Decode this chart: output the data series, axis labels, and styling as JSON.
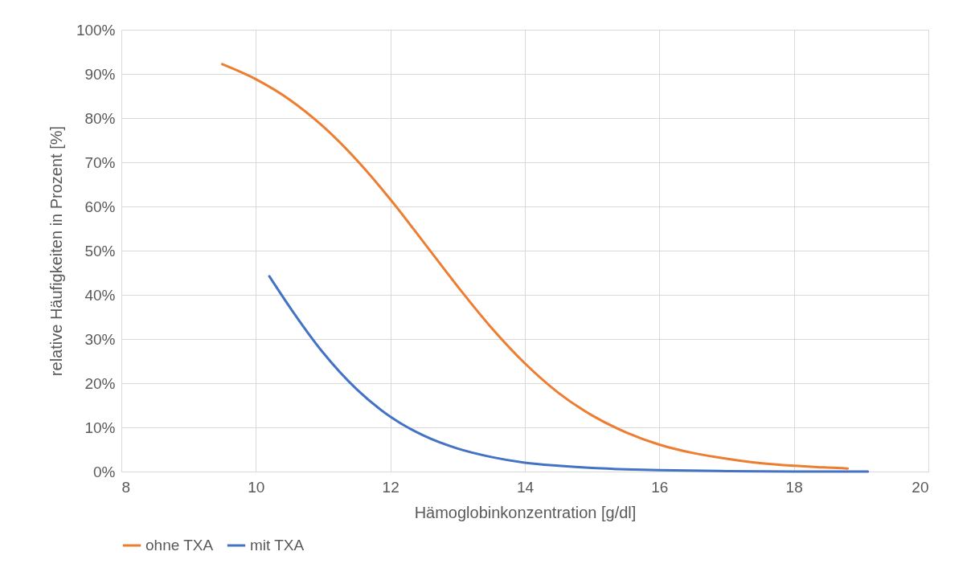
{
  "chart_data": {
    "type": "line",
    "xlabel": "Hämoglobinkonzentration [g/dl]",
    "ylabel": "relative Häufigkeiten in Prozent [%]",
    "xlim": [
      8,
      20
    ],
    "xticks": [
      8,
      10,
      12,
      14,
      16,
      18,
      20
    ],
    "ylim": [
      0,
      100
    ],
    "yticks": [
      {
        "value": 0,
        "label": "0%"
      },
      {
        "value": 10,
        "label": "10%"
      },
      {
        "value": 20,
        "label": "20%"
      },
      {
        "value": 30,
        "label": "30%"
      },
      {
        "value": 40,
        "label": "40%"
      },
      {
        "value": 50,
        "label": "50%"
      },
      {
        "value": 60,
        "label": "60%"
      },
      {
        "value": 70,
        "label": "70%"
      },
      {
        "value": 80,
        "label": "80%"
      },
      {
        "value": 90,
        "label": "90%"
      },
      {
        "value": 100,
        "label": "100%"
      }
    ],
    "grid": true,
    "legend": "bottom",
    "marker": "none",
    "line_style": "solid",
    "series": [
      {
        "name": "ohne TXA",
        "color": "#ed7d31",
        "x": [
          9.5,
          10,
          10.5,
          11,
          11.5,
          12,
          12.5,
          13,
          13.5,
          14,
          14.5,
          15,
          15.5,
          16,
          16.5,
          17,
          17.5,
          18,
          18.5,
          18.8
        ],
        "values": [
          92.2,
          88.8,
          84.2,
          78.1,
          70.5,
          61.6,
          51.8,
          41.9,
          32.6,
          24.5,
          17.8,
          12.7,
          8.9,
          6.1,
          4.2,
          2.9,
          1.9,
          1.3,
          0.9,
          0.7
        ]
      },
      {
        "name": "mit TXA",
        "color": "#4472c4",
        "x": [
          10.2,
          10.5,
          11,
          11.5,
          12,
          12.5,
          13,
          13.5,
          14,
          14.5,
          15,
          15.5,
          16,
          17,
          18,
          19.1
        ],
        "values": [
          44.2,
          37.3,
          26.9,
          18.6,
          12.4,
          8.1,
          5.2,
          3.3,
          2.0,
          1.3,
          0.8,
          0.5,
          0.3,
          0.1,
          0,
          0
        ]
      }
    ]
  }
}
